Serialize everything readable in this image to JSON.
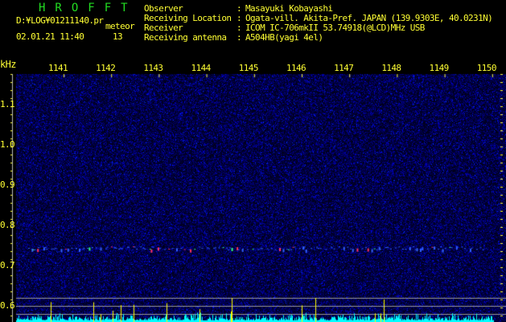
{
  "header": {
    "title": "HROFFT",
    "file_path": "D:¥LOG¥01211140.pr",
    "mode_label": "meteor",
    "datetime": "02.01.21 11:40",
    "count": "13",
    "info": [
      {
        "label": "Observer",
        "value": "Masayuki Kobayashi"
      },
      {
        "label": "Receiving Location",
        "value": "Ogata-vill. Akita-Pref. JAPAN (139.9303E, 40.0231N)"
      },
      {
        "label": "Receiver",
        "value": "ICOM IC-706mkII 53.74918(@LCD)MHz USB"
      },
      {
        "label": "Receiving antenna",
        "value": "A504HB(yagi 4el)"
      }
    ]
  },
  "axes": {
    "unit": "kHz",
    "x_ticks": [
      "1141",
      "1142",
      "1143",
      "1144",
      "1145",
      "1146",
      "1147",
      "1148",
      "1149",
      "1150"
    ],
    "y_ticks": [
      "1.1",
      "1.0",
      "0.9",
      "0.8",
      "0.7",
      "0.6"
    ]
  },
  "colors": {
    "text": "#ffff33",
    "title": "#22dd22",
    "background": "#000000",
    "noise": "#1010a0",
    "spectrum": "#00ffff"
  }
}
